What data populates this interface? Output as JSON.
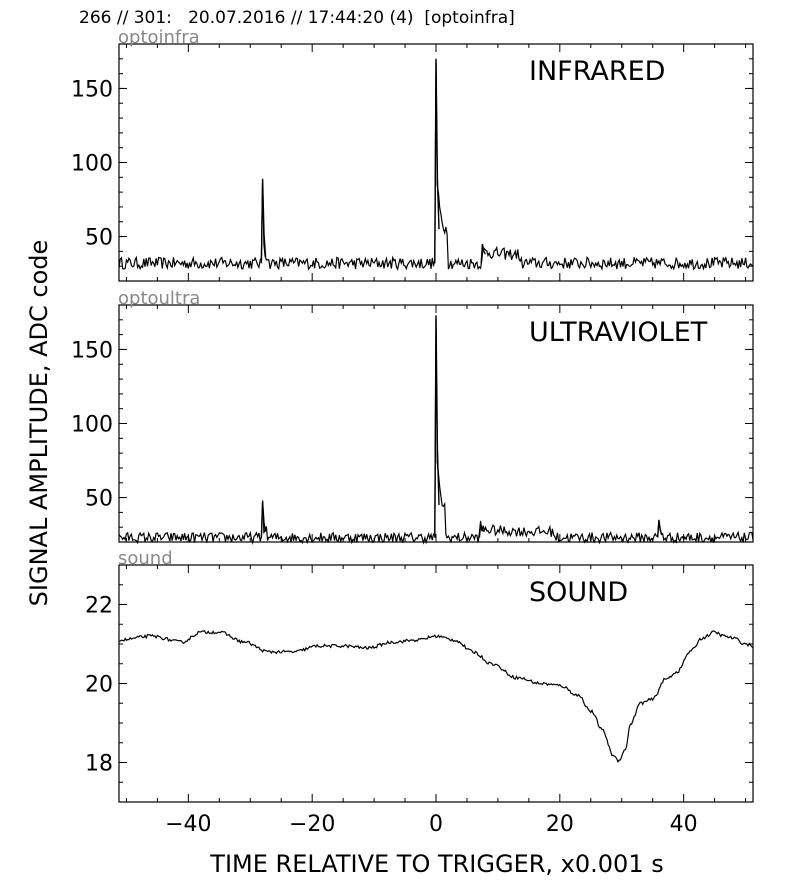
{
  "header": {
    "title": "266 // 301:   20.07.2016 // 17:44:20 (4)  [optoinfra]"
  },
  "chart_data": {
    "type": "line",
    "xlabel": "TIME RELATIVE TO TRIGGER,   x0.001 s",
    "ylabel": "SIGNAL AMPLITUDE,  ADC code",
    "xlim": [
      -51.2,
      51.2
    ],
    "x_ticks": [
      -40,
      -20,
      0,
      20,
      40
    ],
    "x_tick_labels": [
      "−40",
      "−20",
      "0",
      "20",
      "40"
    ],
    "line_color": "#000000",
    "grid": false,
    "panels": [
      {
        "name": "infrared",
        "channel_label": "optoinfra",
        "title": "INFRARED",
        "ylim": [
          20,
          180
        ],
        "y_ticks": [
          50,
          100,
          150
        ],
        "baseline": 32,
        "noise": 4,
        "events": [
          {
            "x": -28,
            "peak": 89,
            "tail_level": 36,
            "tail_ms": 1.0
          },
          {
            "x": 0,
            "peak": 170,
            "tail_level": 55,
            "tail_ms": 2.0
          },
          {
            "x": 7.5,
            "peak": 45,
            "tail_level": 38,
            "tail_ms": 6.0
          }
        ]
      },
      {
        "name": "ultraviolet",
        "channel_label": "optoultra",
        "title": "ULTRAVIOLET",
        "ylim": [
          20,
          180
        ],
        "y_ticks": [
          50,
          100,
          150
        ],
        "baseline": 23,
        "noise": 3.5,
        "events": [
          {
            "x": -28,
            "peak": 47,
            "tail_level": 27,
            "tail_ms": 0.8
          },
          {
            "x": 0,
            "peak": 173,
            "tail_level": 45,
            "tail_ms": 1.5
          },
          {
            "x": 7.2,
            "peak": 32,
            "tail_level": 27,
            "tail_ms": 12.0
          },
          {
            "x": 36,
            "peak": 35,
            "tail_level": 25,
            "tail_ms": 0.8
          }
        ]
      },
      {
        "name": "sound",
        "channel_label": "sound",
        "title": "SOUND",
        "ylim": [
          17,
          23
        ],
        "y_ticks": [
          18,
          20,
          22
        ],
        "noise": 0.04,
        "curve": {
          "x": [
            -51,
            -46,
            -41,
            -38,
            -35,
            -31,
            -27,
            -23,
            -19,
            -15,
            -11,
            -7,
            -3,
            0,
            3,
            6,
            9,
            13,
            17,
            20,
            23,
            25,
            27,
            28.5,
            29.5,
            30.5,
            31.5,
            33,
            35,
            37,
            39,
            41,
            43,
            45,
            46.5,
            48,
            50,
            51.2
          ],
          "y": [
            21.1,
            21.2,
            21.05,
            21.3,
            21.3,
            21.05,
            20.8,
            20.8,
            20.95,
            20.95,
            20.9,
            21.05,
            21.1,
            21.2,
            21.1,
            20.8,
            20.5,
            20.15,
            20.0,
            19.95,
            19.7,
            19.3,
            18.8,
            18.2,
            18.05,
            18.3,
            19.0,
            19.5,
            19.6,
            20.1,
            20.3,
            20.8,
            21.15,
            21.3,
            21.2,
            21.15,
            21.0,
            20.95
          ]
        }
      }
    ]
  }
}
